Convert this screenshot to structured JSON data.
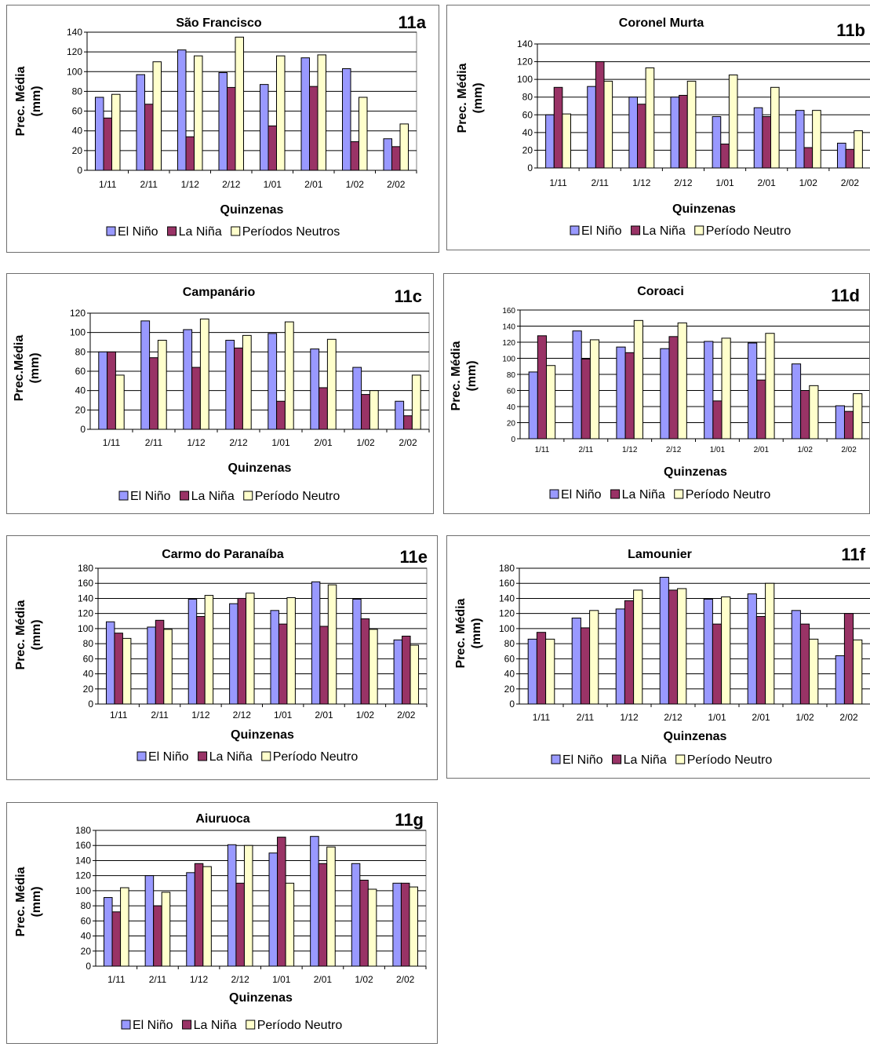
{
  "chart_data": [
    {
      "id": "11a",
      "type": "bar",
      "title": "São Francisco",
      "panel_label": "11a",
      "ylabel": [
        "Prec. Média",
        "(mm)"
      ],
      "xlabel": "Quinzenas",
      "ylim": [
        0,
        140
      ],
      "yticks": [
        0,
        20,
        40,
        60,
        80,
        100,
        120,
        140
      ],
      "categories": [
        "1/11",
        "2/11",
        "1/12",
        "2/12",
        "1/01",
        "2/01",
        "1/02",
        "2/02"
      ],
      "series": [
        {
          "name": "El Niño",
          "values": [
            74,
            97,
            122,
            99,
            87,
            114,
            103,
            32
          ]
        },
        {
          "name": "La Niña",
          "values": [
            53,
            67,
            34,
            84,
            45,
            85,
            29,
            24
          ]
        },
        {
          "name": "Períodos Neutros",
          "values": [
            77,
            110,
            116,
            135,
            116,
            117,
            74,
            47
          ]
        }
      ],
      "grid": true,
      "legend": "bottom"
    },
    {
      "id": "11b",
      "type": "bar",
      "title": "Coronel Murta",
      "panel_label": "11b",
      "ylabel": [
        "Prec. Média",
        "(mm)"
      ],
      "xlabel": "Quinzenas",
      "ylim": [
        0,
        140
      ],
      "yticks": [
        0,
        20,
        40,
        60,
        80,
        100,
        120,
        140
      ],
      "categories": [
        "1/11",
        "2/11",
        "1/12",
        "2/12",
        "1/01",
        "2/01",
        "1/02",
        "2/02"
      ],
      "series": [
        {
          "name": "El Niño",
          "values": [
            60,
            92,
            80,
            80,
            58,
            68,
            65,
            28
          ]
        },
        {
          "name": "La Niña",
          "values": [
            91,
            120,
            72,
            82,
            27,
            58,
            23,
            21
          ]
        },
        {
          "name": "Período Neutro",
          "values": [
            61,
            98,
            113,
            98,
            105,
            91,
            65,
            42
          ]
        }
      ],
      "grid": true,
      "legend": "bottom"
    },
    {
      "id": "11c",
      "type": "bar",
      "title": "Campanário",
      "panel_label": "11c",
      "ylabel": [
        "Prec.Média",
        "(mm)"
      ],
      "xlabel": "Quinzenas",
      "ylim": [
        0,
        120
      ],
      "yticks": [
        0,
        20,
        40,
        60,
        80,
        100,
        120
      ],
      "categories": [
        "1/11",
        "2/11",
        "1/12",
        "2/12",
        "1/01",
        "2/01",
        "1/02",
        "2/02"
      ],
      "series": [
        {
          "name": "El Niño",
          "values": [
            80,
            112,
            103,
            92,
            99,
            83,
            64,
            29
          ]
        },
        {
          "name": "La Niña",
          "values": [
            80,
            74,
            64,
            84,
            29,
            43,
            36,
            14
          ]
        },
        {
          "name": "Período Neutro",
          "values": [
            56,
            92,
            114,
            97,
            111,
            93,
            40,
            56
          ]
        }
      ],
      "grid": true,
      "legend": "bottom"
    },
    {
      "id": "11d",
      "type": "bar",
      "title": "Coroaci",
      "panel_label": "11d",
      "ylabel": [
        "Prec.  Média",
        "(mm)"
      ],
      "xlabel": "Quinzenas",
      "ylim": [
        0,
        160
      ],
      "yticks": [
        0,
        20,
        40,
        60,
        80,
        100,
        120,
        140,
        160
      ],
      "categories": [
        "1/11",
        "2/11",
        "1/12",
        "2/12",
        "1/01",
        "2/01",
        "1/02",
        "2/02"
      ],
      "series": [
        {
          "name": "El Niño",
          "values": [
            83,
            134,
            114,
            112,
            121,
            119,
            93,
            41
          ]
        },
        {
          "name": "La Niña",
          "values": [
            128,
            99,
            107,
            127,
            47,
            73,
            60,
            34
          ]
        },
        {
          "name": "Período Neutro",
          "values": [
            91,
            123,
            147,
            144,
            125,
            131,
            66,
            56
          ]
        }
      ],
      "grid": true,
      "legend": "bottom"
    },
    {
      "id": "11e",
      "type": "bar",
      "title": "Carmo do Paranaíba",
      "panel_label": "11e",
      "ylabel": [
        "Prec. Média",
        "(mm)"
      ],
      "xlabel": "Quinzenas",
      "ylim": [
        0,
        180
      ],
      "yticks": [
        0,
        20,
        40,
        60,
        80,
        100,
        120,
        140,
        160,
        180
      ],
      "categories": [
        "1/11",
        "2/11",
        "1/12",
        "2/12",
        "1/01",
        "2/01",
        "1/02",
        "2/02"
      ],
      "series": [
        {
          "name": "El Niño",
          "values": [
            109,
            102,
            139,
            133,
            124,
            162,
            139,
            85
          ]
        },
        {
          "name": "La Niña",
          "values": [
            94,
            111,
            116,
            140,
            106,
            103,
            113,
            90
          ]
        },
        {
          "name": "Período Neutro",
          "values": [
            87,
            99,
            144,
            147,
            141,
            158,
            99,
            78
          ]
        }
      ],
      "grid": true,
      "legend": "bottom"
    },
    {
      "id": "11f",
      "type": "bar",
      "title": "Lamounier",
      "panel_label": "11f",
      "ylabel": [
        "Prec. Média",
        "(mm)"
      ],
      "xlabel": "Quinzenas",
      "ylim": [
        0,
        180
      ],
      "yticks": [
        0,
        20,
        40,
        60,
        80,
        100,
        120,
        140,
        160,
        180
      ],
      "categories": [
        "1/11",
        "2/11",
        "1/12",
        "2/12",
        "1/01",
        "2/01",
        "1/02",
        "2/02"
      ],
      "series": [
        {
          "name": "El Niño",
          "values": [
            86,
            114,
            126,
            168,
            139,
            146,
            124,
            64
          ]
        },
        {
          "name": "La Niña",
          "values": [
            95,
            101,
            137,
            151,
            106,
            116,
            106,
            120
          ]
        },
        {
          "name": "Período Neutro",
          "values": [
            86,
            124,
            151,
            153,
            142,
            160,
            86,
            85
          ]
        }
      ],
      "grid": true,
      "legend": "bottom"
    },
    {
      "id": "11g",
      "type": "bar",
      "title": "Aiuruoca",
      "panel_label": "11g",
      "ylabel": [
        "Prec. Média",
        "(mm)"
      ],
      "xlabel": "Quinzenas",
      "ylim": [
        0,
        180
      ],
      "yticks": [
        0,
        20,
        40,
        60,
        80,
        100,
        120,
        140,
        160,
        180
      ],
      "categories": [
        "1/11",
        "2/11",
        "1/12",
        "2/12",
        "1/01",
        "2/01",
        "1/02",
        "2/02"
      ],
      "series": [
        {
          "name": "El Niño",
          "values": [
            91,
            120,
            124,
            161,
            150,
            172,
            136,
            110
          ]
        },
        {
          "name": "La Niña",
          "values": [
            72,
            80,
            136,
            110,
            171,
            136,
            114,
            110
          ]
        },
        {
          "name": "Período Neutro",
          "values": [
            104,
            98,
            132,
            160,
            110,
            158,
            102,
            105
          ]
        }
      ],
      "grid": true,
      "legend": "bottom"
    }
  ],
  "colors": {
    "el_nino": "#9999ff",
    "la_nina": "#993366",
    "neutro": "#ffffcc",
    "grid": "#000000",
    "plot_bg": "#ffffff"
  }
}
